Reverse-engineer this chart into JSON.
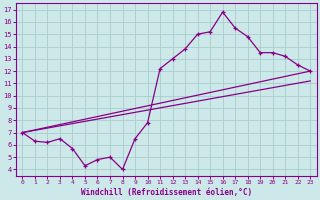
{
  "xlabel": "Windchill (Refroidissement éolien,°C)",
  "bg_color": "#cce8e8",
  "grid_color": "#aacccc",
  "line_color": "#880088",
  "xlim": [
    -0.5,
    23.5
  ],
  "ylim": [
    3.5,
    17.5
  ],
  "xticks": [
    0,
    1,
    2,
    3,
    4,
    5,
    6,
    7,
    8,
    9,
    10,
    11,
    12,
    13,
    14,
    15,
    16,
    17,
    18,
    19,
    20,
    21,
    22,
    23
  ],
  "yticks": [
    4,
    5,
    6,
    7,
    8,
    9,
    10,
    11,
    12,
    13,
    14,
    15,
    16,
    17
  ],
  "line1_x": [
    0,
    1,
    2,
    3,
    4,
    5,
    6,
    7,
    8,
    9,
    10,
    11,
    12,
    13,
    14,
    15,
    16,
    17,
    18,
    19,
    20,
    21,
    22,
    23
  ],
  "line1_y": [
    7.0,
    6.3,
    6.2,
    6.5,
    5.7,
    4.3,
    4.8,
    5.0,
    4.0,
    6.5,
    7.8,
    12.2,
    13.0,
    13.8,
    15.0,
    15.2,
    16.8,
    15.5,
    14.8,
    13.5,
    13.5,
    13.2,
    12.5,
    12.0
  ],
  "line2_x": [
    0,
    23
  ],
  "line2_y": [
    7.0,
    12.0
  ],
  "line3_x": [
    0,
    23
  ],
  "line3_y": [
    7.0,
    11.2
  ]
}
